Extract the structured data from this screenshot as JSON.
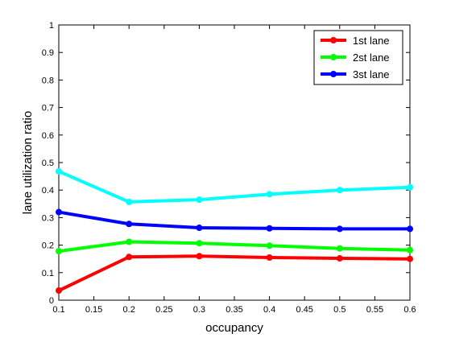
{
  "chart_data": {
    "type": "line",
    "title": "",
    "xlabel": "occupancy",
    "ylabel": "lane utilization ratio",
    "xlim": [
      0.1,
      0.6
    ],
    "ylim": [
      0,
      1
    ],
    "x": [
      0.1,
      0.2,
      0.3,
      0.4,
      0.5,
      0.6
    ],
    "xticks": [
      0.1,
      0.15,
      0.2,
      0.25,
      0.3,
      0.35,
      0.4,
      0.45,
      0.5,
      0.55,
      0.6
    ],
    "xtick_labels": [
      "0.1",
      "0.15",
      "0.2",
      "0.25",
      "0.3",
      "0.35",
      "0.4",
      "0.45",
      "0.5",
      "0.55",
      "0.6"
    ],
    "yticks": [
      0,
      0.1,
      0.2,
      0.3,
      0.4,
      0.5,
      0.6,
      0.7,
      0.8,
      0.9,
      1
    ],
    "ytick_labels": [
      "0",
      "0.1",
      "0.2",
      "0.3",
      "0.4",
      "0.5",
      "0.6",
      "0.7",
      "0.8",
      "0.9",
      "1"
    ],
    "grid": false,
    "legend_position": "top-right",
    "series": [
      {
        "name": "1st lane",
        "color": "#ff0000",
        "values": [
          0.035,
          0.157,
          0.16,
          0.155,
          0.152,
          0.15
        ]
      },
      {
        "name": "2st lane",
        "color": "#00ff00",
        "values": [
          0.178,
          0.212,
          0.207,
          0.198,
          0.188,
          0.182
        ]
      },
      {
        "name": "3st lane",
        "color": "#0000ff",
        "values": [
          0.32,
          0.277,
          0.263,
          0.261,
          0.259,
          0.259
        ]
      },
      {
        "color": "#00ffff",
        "values": [
          0.468,
          0.357,
          0.365,
          0.385,
          0.4,
          0.41
        ]
      }
    ]
  }
}
